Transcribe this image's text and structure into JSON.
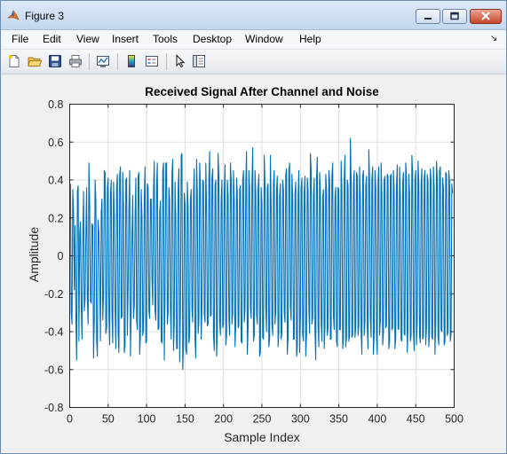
{
  "window": {
    "title": "Figure 3",
    "app_icon": "matlab-icon",
    "controls": [
      "minimize-icon",
      "maximize-icon",
      "close-icon"
    ]
  },
  "menu": {
    "items": [
      "File",
      "Edit",
      "View",
      "Insert",
      "Tools",
      "Desktop",
      "Window",
      "Help"
    ]
  },
  "toolbar": {
    "buttons": [
      "new-figure-icon",
      "open-file-icon",
      "save-icon",
      "print-icon",
      "link-plot-icon",
      "insert-colorbar-icon",
      "insert-legend-icon",
      "edit-plot-icon",
      "property-editor-icon"
    ]
  },
  "colors": {
    "signal_line": "#0072bd",
    "grid": "#dfdfdf",
    "axes_background": "#ffffff",
    "figure_background": "#f0f0f0"
  },
  "chart_data": {
    "type": "line",
    "title": "Received Signal After Channel and Noise",
    "xlabel": "Sample Index",
    "ylabel": "Amplitude",
    "xlim": [
      0,
      500
    ],
    "ylim": [
      -0.8,
      0.8
    ],
    "xticks": [
      0,
      50,
      100,
      150,
      200,
      250,
      300,
      350,
      400,
      450,
      500
    ],
    "yticks": [
      -0.8,
      -0.6,
      -0.4,
      -0.2,
      0,
      0.2,
      0.4,
      0.6,
      0.8
    ],
    "xtick_labels": [
      "0",
      "50",
      "100",
      "150",
      "200",
      "250",
      "300",
      "350",
      "400",
      "450",
      "500"
    ],
    "ytick_labels": [
      "-0.8",
      "-0.6",
      "-0.4",
      "-0.2",
      "0",
      "0.2",
      "0.4",
      "0.6",
      "0.8"
    ],
    "grid": true,
    "legend": "none",
    "series": [
      {
        "x_start": 1,
        "x_step": 1,
        "y": [
          0.38,
          -0.3,
          -0.36,
          0.35,
          0.23,
          -0.18,
          0.16,
          -0.32,
          -0.55,
          0.34,
          0.37,
          -0.45,
          0.11,
          0.18,
          -0.26,
          -0.44,
          0.12,
          0.34,
          -0.29,
          -0.23,
          0.1,
          0.36,
          -0.24,
          -0.36,
          0.49,
          0.26,
          -0.24,
          -0.25,
          0.17,
          0.16,
          -0.54,
          -0.33,
          0.4,
          0.3,
          -0.44,
          -0.53,
          0.19,
          0.12,
          -0.11,
          -0.45,
          0.23,
          0.3,
          -0.34,
          -0.2,
          0.45,
          0.44,
          -0.41,
          -0.38,
          0.36,
          0.41,
          -0.31,
          -0.47,
          0.32,
          0.4,
          -0.32,
          -0.46,
          0.39,
          0.22,
          -0.28,
          -0.49,
          0.36,
          0.43,
          -0.41,
          -0.51,
          0.43,
          0.47,
          -0.33,
          -0.32,
          0.44,
          0.27,
          -0.51,
          -0.47,
          0.4,
          0.41,
          -0.42,
          -0.17,
          0.25,
          0.45,
          -0.53,
          -0.29,
          0.11,
          0.32,
          -0.33,
          -0.26,
          0.21,
          0.41,
          -0.34,
          -0.39,
          0.42,
          0.44,
          -0.52,
          -0.42,
          0.35,
          0.21,
          -0.42,
          -0.39,
          0.31,
          0.47,
          -0.46,
          -0.45,
          0.38,
          0.36,
          -0.29,
          -0.33,
          0.3,
          0.3,
          -0.13,
          -0.26,
          0.34,
          0.5,
          -0.29,
          -0.34,
          0.37,
          0.49,
          -0.39,
          -0.38,
          0.23,
          0.29,
          -0.45,
          -0.46,
          0.45,
          0.49,
          -0.55,
          -0.22,
          0.49,
          0.49,
          -0.36,
          -0.3,
          0.36,
          0.3,
          -0.29,
          -0.44,
          0.43,
          0.51,
          -0.5,
          -0.35,
          0.39,
          0.2,
          -0.49,
          -0.49,
          0.35,
          0.46,
          -0.56,
          -0.3,
          0.53,
          0.54,
          -0.6,
          -0.47,
          0.33,
          0.27,
          -0.49,
          -0.52,
          0.39,
          0.26,
          -0.46,
          -0.43,
          0.3,
          0.35,
          -0.29,
          -0.35,
          0.33,
          0.46,
          -0.44,
          -0.54,
          0.51,
          0.32,
          -0.41,
          -0.35,
          0.49,
          0.38,
          -0.44,
          -0.28,
          0.4,
          0.39,
          -0.31,
          -0.35,
          0.49,
          0.26,
          -0.37,
          -0.36,
          0.4,
          0.55,
          -0.32,
          -0.31,
          0.41,
          0.46,
          -0.42,
          -0.5,
          0.37,
          0.4,
          -0.53,
          -0.41,
          0.54,
          0.41,
          -0.35,
          -0.42,
          0.29,
          0.4,
          -0.38,
          -0.36,
          0.34,
          0.48,
          -0.47,
          -0.42,
          0.4,
          0.32,
          -0.33,
          -0.42,
          0.49,
          0.4,
          -0.36,
          -0.31,
          0.45,
          0.3,
          -0.48,
          -0.36,
          0.41,
          0.33,
          -0.38,
          -0.37,
          0.35,
          0.37,
          -0.45,
          -0.46,
          0.4,
          0.45,
          -0.35,
          -0.29,
          0.38,
          0.55,
          -0.52,
          -0.38,
          0.45,
          0.36,
          -0.28,
          -0.33,
          0.37,
          0.57,
          -0.45,
          -0.42,
          0.45,
          0.33,
          -0.31,
          -0.36,
          0.35,
          0.43,
          -0.53,
          -0.51,
          0.36,
          0.28,
          -0.43,
          -0.44,
          0.53,
          0.37,
          -0.28,
          -0.4,
          0.36,
          0.38,
          -0.48,
          -0.44,
          0.53,
          0.26,
          -0.36,
          -0.42,
          0.38,
          0.45,
          -0.36,
          -0.29,
          0.35,
          0.42,
          -0.48,
          -0.4,
          0.32,
          0.38,
          -0.44,
          -0.41,
          0.4,
          0.35,
          -0.3,
          -0.35,
          0.43,
          0.46,
          -0.52,
          -0.43,
          0.45,
          0.49,
          -0.27,
          -0.34,
          0.43,
          0.32,
          -0.44,
          -0.44,
          0.33,
          0.39,
          -0.53,
          -0.48,
          0.31,
          0.45,
          -0.51,
          -0.34,
          0.36,
          0.41,
          -0.42,
          -0.45,
          0.34,
          0.42,
          -0.53,
          -0.42,
          0.41,
          0.35,
          -0.28,
          -0.41,
          0.54,
          0.45,
          -0.36,
          -0.33,
          0.32,
          0.41,
          -0.4,
          -0.55,
          0.41,
          0.52,
          -0.37,
          -0.48,
          0.44,
          0.34,
          -0.35,
          -0.45,
          0.31,
          0.35,
          -0.49,
          -0.37,
          0.43,
          0.35,
          -0.42,
          -0.38,
          0.45,
          0.4,
          -0.44,
          -0.44,
          0.42,
          0.49,
          -0.32,
          -0.39,
          0.31,
          0.36,
          -0.45,
          -0.48,
          0.36,
          0.35,
          -0.39,
          -0.39,
          0.5,
          0.34,
          -0.49,
          -0.44,
          0.4,
          0.53,
          -0.48,
          -0.43,
          0.4,
          0.37,
          -0.45,
          -0.42,
          0.62,
          0.39,
          -0.43,
          -0.42,
          0.37,
          0.45,
          -0.43,
          -0.38,
          0.44,
          0.42,
          -0.42,
          -0.37,
          0.47,
          0.31,
          -0.4,
          -0.52,
          0.42,
          0.45,
          -0.42,
          -0.35,
          0.37,
          0.42,
          -0.38,
          -0.49,
          0.56,
          0.39,
          -0.33,
          -0.43,
          0.4,
          0.47,
          -0.52,
          -0.41,
          0.45,
          0.36,
          -0.43,
          -0.52,
          0.38,
          0.47,
          -0.42,
          -0.34,
          0.49,
          0.33,
          -0.47,
          -0.41,
          0.4,
          0.42,
          -0.38,
          -0.37,
          0.43,
          0.42,
          -0.49,
          -0.45,
          0.42,
          0.43,
          -0.39,
          -0.38,
          0.45,
          0.35,
          -0.49,
          -0.43,
          0.37,
          0.48,
          -0.38,
          -0.39,
          0.47,
          0.32,
          -0.44,
          -0.45,
          0.38,
          0.44,
          -0.41,
          -0.42,
          0.49,
          0.42,
          -0.51,
          -0.38,
          0.43,
          0.33,
          -0.45,
          -0.42,
          0.53,
          0.44,
          -0.4,
          -0.5,
          0.4,
          0.45,
          -0.47,
          -0.35,
          0.5,
          0.39,
          -0.42,
          -0.46,
          0.38,
          0.46,
          -0.44,
          -0.42,
          0.41,
          0.45,
          -0.47,
          -0.38,
          0.43,
          0.39,
          -0.48,
          -0.41,
          0.46,
          0.4,
          -0.43,
          -0.44,
          0.47,
          0.36,
          -0.52,
          -0.36,
          0.5,
          0.41,
          -0.43,
          -0.47,
          0.45,
          0.47,
          -0.39,
          -0.4,
          0.41,
          0.36,
          -0.47,
          -0.45,
          0.44,
          0.43,
          -0.42,
          -0.4,
          0.45,
          0.39,
          -0.45,
          -0.41,
          0.38,
          0.33
        ]
      }
    ]
  }
}
